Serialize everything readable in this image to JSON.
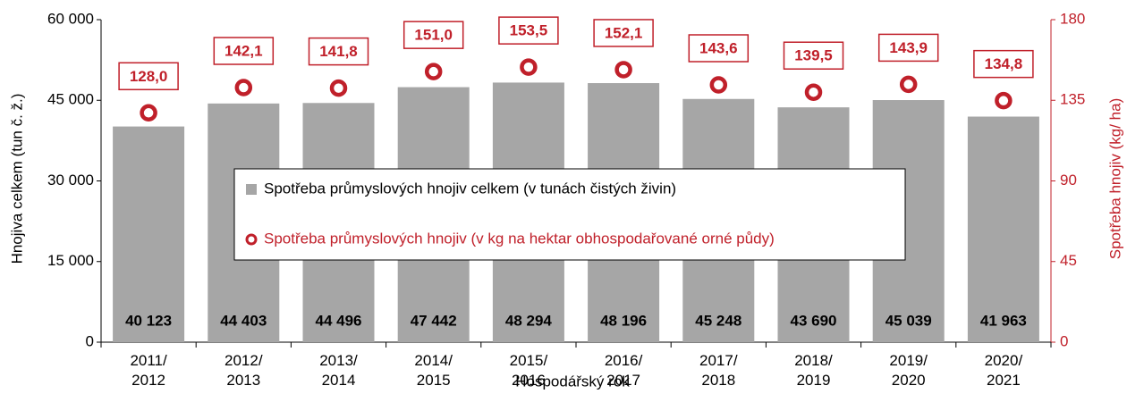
{
  "chart_data": {
    "type": "bar",
    "xlabel": "Hospodářský rok",
    "ylabel": "Hnojiva celkem (tun č. ž.)",
    "y2label": "Spotřeba hnojiv (kg/ ha)",
    "categories": [
      "2011/2012",
      "2012/2013",
      "2013/2014",
      "2014/2015",
      "2015/2016",
      "2016/2017",
      "2017/2018",
      "2018/2019",
      "2019/2020",
      "2020/2021"
    ],
    "series": [
      {
        "name": "Spotřeba průmyslových hnojiv celkem (v tunách čistých živin)",
        "type": "bar",
        "color": "#a6a6a6",
        "values": [
          40123,
          44403,
          44496,
          47442,
          48294,
          48196,
          45248,
          43690,
          45039,
          41963
        ],
        "value_labels": [
          "40 123",
          "44 403",
          "44 496",
          "47 442",
          "48 294",
          "48 196",
          "45 248",
          "43 690",
          "45 039",
          "41 963"
        ]
      },
      {
        "name": "Spotřeba průmyslových hnojiv (v kg na hektar obhospodařované orné půdy)",
        "type": "scatter",
        "axis": "y2",
        "color": "#c0202a",
        "values": [
          128.0,
          142.1,
          141.8,
          151.0,
          153.5,
          152.1,
          143.6,
          139.5,
          143.9,
          134.8
        ],
        "value_labels": [
          "128,0",
          "142,1",
          "141,8",
          "151,0",
          "153,5",
          "152,1",
          "143,6",
          "139,5",
          "143,9",
          "134,8"
        ]
      }
    ],
    "ylim": [
      0,
      60000
    ],
    "yticks": [
      0,
      {
        "value": 15000,
        "label": "15 000"
      },
      {
        "value": 30000,
        "label": "30 000"
      },
      {
        "value": 45000,
        "label": "45 000"
      },
      {
        "value": 60000,
        "label": "60 000"
      }
    ],
    "y2lim": [
      0,
      180
    ],
    "y2ticks": [
      0,
      45,
      90,
      135,
      180
    ],
    "grid": false
  }
}
